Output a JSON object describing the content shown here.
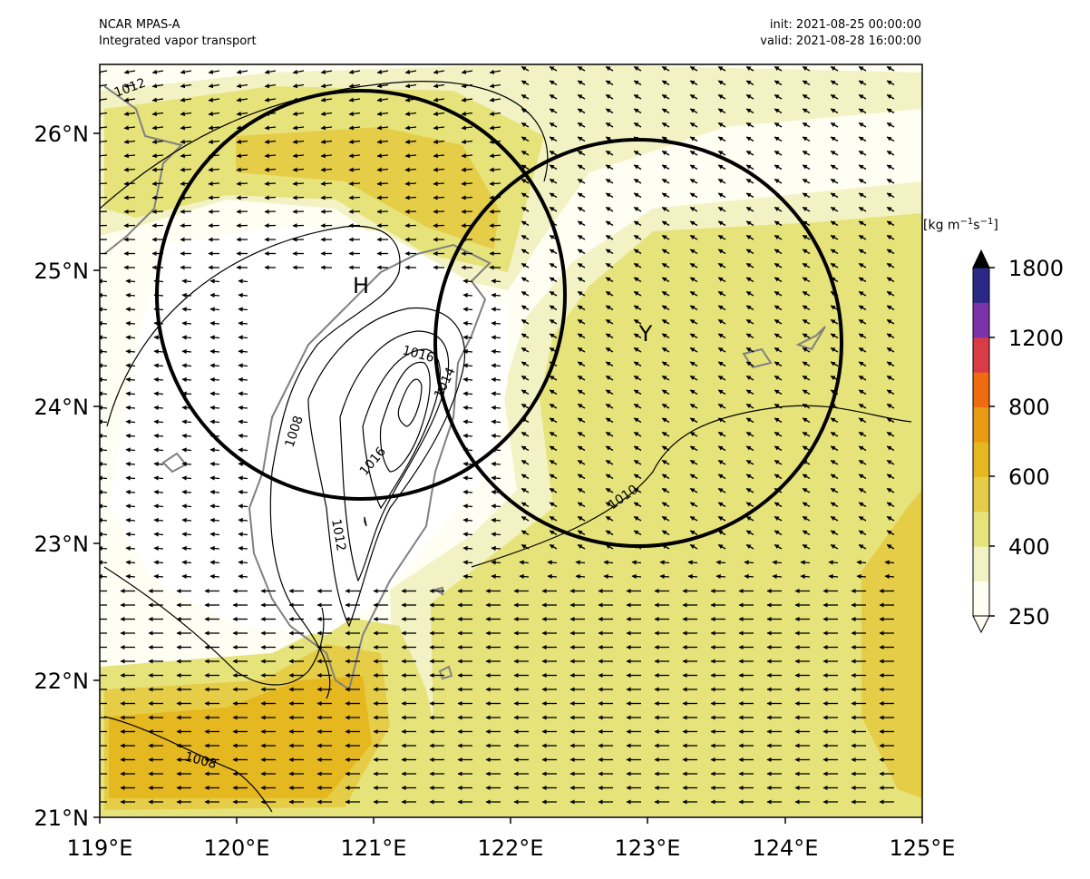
{
  "header": {
    "model": "NCAR MPAS-A",
    "field": "Integrated vapor transport",
    "init": "init: 2021-08-25 00:00:00",
    "valid": "valid: 2021-08-28 16:00:00"
  },
  "axes": {
    "xticks": [
      "119°E",
      "120°E",
      "121°E",
      "122°E",
      "123°E",
      "124°E",
      "125°E"
    ],
    "yticks": [
      "21°N",
      "22°N",
      "23°N",
      "24°N",
      "25°N",
      "26°N"
    ],
    "lon_range": [
      119,
      125
    ],
    "lat_range": [
      21,
      26.5
    ]
  },
  "colorbar": {
    "units_base": "[kg m",
    "units_exp1": "−1",
    "units_mid": "s",
    "units_exp2": "−1",
    "units_end": "]",
    "tick_labels": [
      "250",
      "400",
      "600",
      "800",
      "1200",
      "1800"
    ],
    "levels": [
      250,
      300,
      400,
      500,
      600,
      700,
      800,
      1000,
      1200,
      1500,
      1800
    ],
    "colors": [
      "#fefef3",
      "#f3f2c4",
      "#e6e37b",
      "#e6cd47",
      "#e6b81f",
      "#e89a12",
      "#ee6b0f",
      "#d93c47",
      "#7a33a8",
      "#2a2a86"
    ],
    "extend": "both"
  },
  "map_labels": {
    "marker_h": "H",
    "marker_y": "Y"
  },
  "contour_labels": {
    "c1012_nw": "1012",
    "c1008_mid": "1008",
    "c1016_top": "1016",
    "c1014": "1014",
    "c1016_low": "1016",
    "c1012_low": "1012",
    "c1010": "1010",
    "c1008_sw": "1008"
  },
  "colors": {
    "land": "#808080",
    "isobar": "#000000",
    "circle": "#000000"
  }
}
